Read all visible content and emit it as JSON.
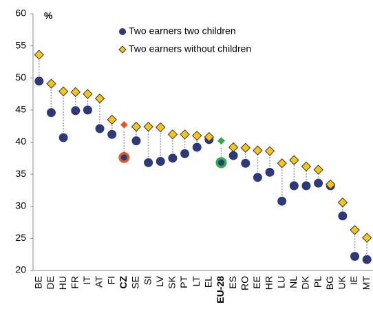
{
  "chart_data": {
    "type": "dotplot",
    "ylabel": "%",
    "categories": [
      "BE",
      "DE",
      "HU",
      "FR",
      "IT",
      "AT",
      "FI",
      "CZ",
      "SE",
      "SI",
      "LV",
      "SK",
      "PT",
      "LT",
      "EL",
      "EU-28",
      "ES",
      "RO",
      "EE",
      "HR",
      "LU",
      "NL",
      "DK",
      "PL",
      "BG",
      "UK",
      "IE",
      "MT"
    ],
    "series": [
      {
        "name": "Two earners two children",
        "color": "#2e3a78",
        "marker": "circle",
        "values": [
          49.5,
          44.6,
          40.7,
          44.9,
          45.0,
          42.1,
          41.2,
          37.6,
          40.2,
          36.8,
          37.0,
          37.5,
          38.2,
          39.2,
          40.4,
          36.8,
          37.9,
          36.7,
          34.5,
          35.3,
          30.8,
          33.2,
          33.2,
          33.6,
          33.2,
          28.5,
          22.2,
          21.7
        ]
      },
      {
        "name": "Two earners without children",
        "color": "#f5c518",
        "marker": "diamond",
        "values": [
          53.6,
          49.1,
          47.9,
          47.8,
          47.5,
          46.8,
          43.5,
          42.7,
          42.4,
          42.4,
          42.3,
          41.2,
          41.2,
          41.0,
          40.8,
          40.2,
          39.2,
          39.1,
          38.7,
          38.6,
          36.7,
          37.2,
          36.2,
          35.7,
          33.4,
          30.6,
          26.3,
          25.1
        ]
      }
    ],
    "highlight": {
      "CZ": "#e2592a",
      "EU-28": "#2bad4a"
    },
    "ylim": [
      20,
      60
    ],
    "yticks": [
      20,
      25,
      30,
      35,
      40,
      45,
      50,
      55,
      60
    ],
    "grid": false,
    "legend": "top"
  }
}
